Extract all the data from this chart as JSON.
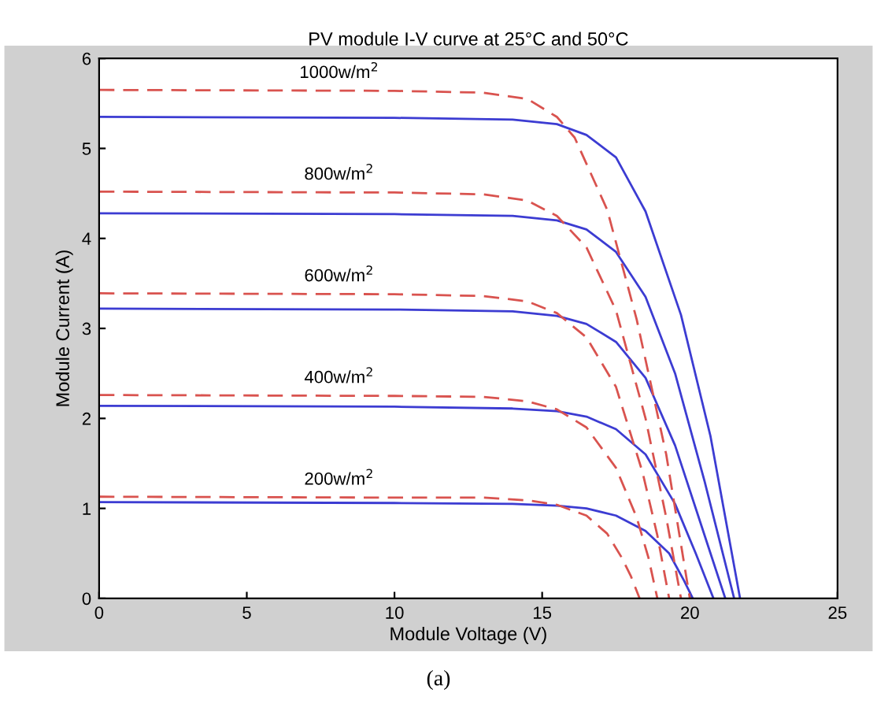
{
  "chart_data": {
    "type": "line",
    "title": "PV module I-V curve at 25°C and 50°C",
    "xlabel": "Module Voltage (V)",
    "ylabel": "Module Current (A)",
    "xlim": [
      0,
      25
    ],
    "xticks": [
      0,
      5,
      10,
      15,
      20,
      25
    ],
    "ylim": [
      0,
      6
    ],
    "yticks": [
      0,
      1,
      2,
      3,
      4,
      5,
      6
    ],
    "grid": false,
    "legend": false,
    "marker": "none",
    "series": [
      {
        "color": "#3c3cd2",
        "line_style": "solid",
        "x": [
          0,
          10,
          14,
          15.5,
          16.5,
          17.5,
          18.5,
          19.7,
          20.7,
          21.7
        ],
        "values": [
          5.35,
          5.34,
          5.32,
          5.27,
          5.15,
          4.9,
          4.3,
          3.15,
          1.8,
          0
        ]
      },
      {
        "color": "#3c3cd2",
        "line_style": "solid",
        "x": [
          0,
          10,
          14,
          15.5,
          16.5,
          17.5,
          18.5,
          19.5,
          20.5,
          21.5
        ],
        "values": [
          4.28,
          4.27,
          4.25,
          4.2,
          4.1,
          3.85,
          3.35,
          2.5,
          1.3,
          0
        ]
      },
      {
        "color": "#3c3cd2",
        "line_style": "solid",
        "x": [
          0,
          10,
          14,
          15.5,
          16.5,
          17.5,
          18.5,
          19.5,
          20.4,
          21.2
        ],
        "values": [
          3.22,
          3.21,
          3.19,
          3.14,
          3.05,
          2.85,
          2.45,
          1.7,
          0.8,
          0
        ]
      },
      {
        "color": "#3c3cd2",
        "line_style": "solid",
        "x": [
          0,
          10,
          14,
          15.5,
          16.5,
          17.5,
          18.5,
          19.5,
          20.2,
          20.8
        ],
        "values": [
          2.14,
          2.13,
          2.11,
          2.08,
          2.02,
          1.88,
          1.6,
          1.05,
          0.5,
          0
        ]
      },
      {
        "color": "#3c3cd2",
        "line_style": "solid",
        "x": [
          0,
          10,
          14,
          15.5,
          16.5,
          17.5,
          18.5,
          19.3,
          19.8,
          20.1
        ],
        "values": [
          1.07,
          1.06,
          1.05,
          1.03,
          1.0,
          0.92,
          0.75,
          0.5,
          0.2,
          0
        ]
      },
      {
        "color": "#d9534f",
        "line_style": "dashed",
        "x": [
          0,
          10,
          13,
          14.5,
          15.5,
          16.1,
          17.2,
          18.2,
          19.2,
          20.0
        ],
        "values": [
          5.65,
          5.64,
          5.62,
          5.55,
          5.35,
          5.12,
          4.32,
          3.1,
          1.6,
          0
        ]
      },
      {
        "color": "#d9534f",
        "line_style": "dashed",
        "x": [
          0,
          10,
          13,
          14.5,
          15.5,
          16.5,
          17.5,
          18.5,
          19.2,
          19.7
        ],
        "values": [
          4.52,
          4.51,
          4.49,
          4.42,
          4.25,
          3.9,
          3.2,
          2.0,
          0.9,
          0
        ]
      },
      {
        "color": "#d9534f",
        "line_style": "dashed",
        "x": [
          0,
          10,
          13,
          14.5,
          15.5,
          16.5,
          17.5,
          18.4,
          18.9,
          19.3
        ],
        "values": [
          3.39,
          3.38,
          3.36,
          3.3,
          3.17,
          2.9,
          2.35,
          1.4,
          0.7,
          0
        ]
      },
      {
        "color": "#d9534f",
        "line_style": "dashed",
        "x": [
          0,
          10,
          13,
          14.5,
          15.5,
          16.5,
          17.5,
          18.2,
          18.6,
          18.9
        ],
        "values": [
          2.26,
          2.25,
          2.24,
          2.19,
          2.1,
          1.9,
          1.45,
          0.9,
          0.45,
          0
        ]
      },
      {
        "color": "#d9534f",
        "line_style": "dashed",
        "x": [
          0,
          10,
          13,
          14.5,
          15.5,
          16.5,
          17.2,
          17.7,
          18.0,
          18.3
        ],
        "values": [
          1.13,
          1.12,
          1.12,
          1.09,
          1.04,
          0.92,
          0.72,
          0.45,
          0.25,
          0
        ]
      }
    ],
    "annotations": [
      "1000w/m$^{2}$",
      "800w/m$^{2}$",
      "600w/m$^{2}$",
      "400w/m$^{2}$",
      "200w/m$^{2}$",
      "(a)"
    ]
  }
}
